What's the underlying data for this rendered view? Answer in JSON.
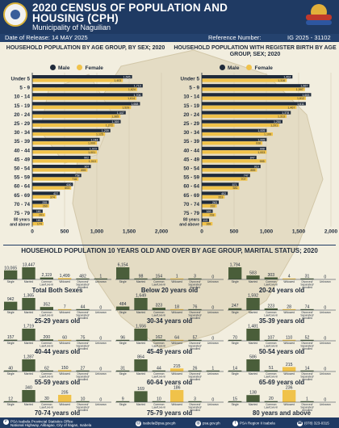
{
  "header": {
    "title_line1": "2020 CENSUS OF POPULATION AND",
    "title_line2": "HOUSING (CPH)",
    "municipality": "Municipality of Naguilian",
    "date_label": "Date of Release: 14 MAY 2025",
    "ref_label": "Reference Number:",
    "ref_value": "IG 2025 - 31102"
  },
  "legend": {
    "male": "Male",
    "female": "Female"
  },
  "colors": {
    "male": "#4a5e3a",
    "female": "#f0c24a",
    "navy": "#1f3a63"
  },
  "chart_data": [
    {
      "type": "bar",
      "title": "HOUSEHOLD POPULATION BY AGE GROUP, BY SEX; 2020",
      "categories": [
        "Under 5",
        "5 - 9",
        "10 - 14",
        "15 - 19",
        "20 - 24",
        "25 - 29",
        "30 - 34",
        "35 - 39",
        "40 - 44",
        "45 - 49",
        "50 - 54",
        "55 - 59",
        "60 - 64",
        "65 - 69",
        "70 - 74",
        "75 - 79",
        "80 years and above"
      ],
      "series": [
        {
          "name": "Male",
          "values": [
            1545,
            1710,
            1706,
            1668,
            1447,
            1369,
            1209,
            1044,
            1023,
            902,
            907,
            758,
            630,
            427,
            255,
            161,
            161
          ]
        },
        {
          "name": "Female",
          "values": [
            1403,
            1624,
            1614,
            1529,
            1365,
            1272,
            1125,
            1000,
            1001,
            1010,
            855,
            716,
            603,
            374,
            260,
            201,
            174
          ]
        }
      ],
      "xticks": [
        "0",
        "500",
        "1,000",
        "1,500",
        "2,000"
      ],
      "xlim": [
        0,
        2000
      ]
    },
    {
      "type": "bar",
      "title": "HOUSEHOLD POPULATION WITH REGISTER BIRTH BY AGE GROUP, SEX; 2020",
      "categories": [
        "Under 5",
        "5 - 9",
        "10 - 14",
        "15 - 19",
        "20 - 24",
        "25 - 29",
        "30 - 34",
        "35 - 39",
        "40 - 44",
        "45 - 49",
        "50 - 54",
        "55 - 59",
        "60 - 64",
        "65 - 69",
        "70 - 74",
        "75 - 79",
        "80 years and above"
      ],
      "series": [
        {
          "name": "Male",
          "values": [
            1404,
            1667,
            1693,
            1611,
            1378,
            1250,
            1005,
            1005,
            998,
            847,
            910,
            747,
            571,
            402,
            263,
            169,
            113
          ]
        },
        {
          "name": "Female",
          "values": [
            1316,
            1597,
            1612,
            1467,
            1313,
            1201,
            1100,
            938,
            1003,
            995,
            855,
            707,
            581,
            353,
            232,
            218,
            166
          ]
        }
      ],
      "xticks": [
        "0",
        "500",
        "1,000",
        "1,500",
        "2,000"
      ],
      "xlim": [
        0,
        2000
      ]
    },
    {
      "type": "bar",
      "title": "HOUSEHOLD POPULATION 10 YEARS OLD AND OVER BY AGE GROUP, MARITAL STATUS; 2020",
      "categories": [
        "Single",
        "Married",
        "Common Law/Live-In",
        "Widowed",
        "Divorced/ Separated/ Annulled",
        "Unknown"
      ],
      "groups": [
        {
          "name": "Total Both Sexes",
          "values": [
            10065,
            13447,
            2119,
            1499,
            482,
            1
          ]
        },
        {
          "name": "Below 20 years old",
          "values": [
            6154,
            98,
            154,
            1,
            3,
            0
          ]
        },
        {
          "name": "20-24 years old",
          "values": [
            1794,
            583,
            303,
            4,
            31,
            0
          ]
        },
        {
          "name": "25-29 years old",
          "values": [
            942,
            1365,
            352,
            7,
            44,
            0
          ]
        },
        {
          "name": "30-34 years old",
          "values": [
            484,
            1649,
            323,
            18,
            76,
            0
          ]
        },
        {
          "name": "35-39 years old",
          "values": [
            247,
            1592,
            223,
            28,
            74,
            0
          ]
        },
        {
          "name": "40-44 years old",
          "values": [
            157,
            1719,
            200,
            60,
            75,
            0
          ]
        },
        {
          "name": "45-49 years old",
          "values": [
            96,
            1556,
            162,
            64,
            57,
            0
          ]
        },
        {
          "name": "50-54 years old",
          "values": [
            70,
            1481,
            107,
            110,
            52,
            0
          ]
        },
        {
          "name": "55-59 years old",
          "values": [
            40,
            1287,
            62,
            150,
            27,
            0
          ]
        },
        {
          "name": "60-64 years old",
          "values": [
            31,
            864,
            44,
            215,
            26,
            1
          ]
        },
        {
          "name": "65-69 years old",
          "values": [
            14,
            586,
            51,
            215,
            14,
            0
          ]
        },
        {
          "name": "70-74 years old",
          "values": [
            12,
            340,
            30,
            205,
            10,
            0
          ]
        },
        {
          "name": "75-79 years old",
          "values": [
            9,
            169,
            10,
            186,
            3,
            0
          ]
        },
        {
          "name": "80 years and above",
          "values": [
            15,
            138,
            20,
            236,
            1,
            0
          ]
        }
      ]
    }
  ],
  "footer": {
    "office": "PSA Isabela Provincial Statistics Office",
    "address": "National Highway, Alibagao, City of Ilagan, Isabela",
    "email": "isabela@psa.gov.ph",
    "web": "psa.gov.ph",
    "fb": "PSA Region II Isabela",
    "phone": "(078) 323-0315"
  }
}
